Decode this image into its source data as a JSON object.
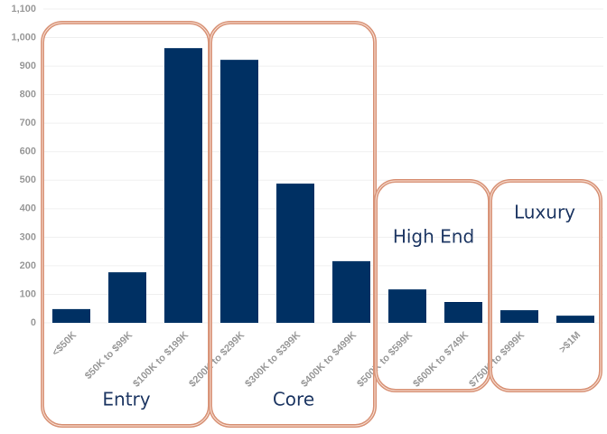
{
  "chart_data": {
    "type": "bar",
    "categories": [
      "<$50K",
      "$50K to $99K",
      "$100K to $199K",
      "$200K to $299K",
      "$300K to $399K",
      "$400K to $499K",
      "$500K to $599K",
      "$600K to $749K",
      "$750K to $999K",
      ">$1M"
    ],
    "values": [
      48,
      177,
      963,
      922,
      488,
      216,
      117,
      73,
      44,
      25
    ],
    "color": "#003063",
    "ylim": [
      0,
      1100
    ],
    "yticks": [
      0,
      100,
      200,
      300,
      400,
      500,
      600,
      700,
      800,
      900,
      {
        "value": 1000,
        "label": "1,000"
      },
      {
        "value": 1100,
        "label": "1,100"
      }
    ],
    "grid": true,
    "group_labels": [
      "Entry",
      "Core",
      "High End",
      "Luxury"
    ]
  }
}
